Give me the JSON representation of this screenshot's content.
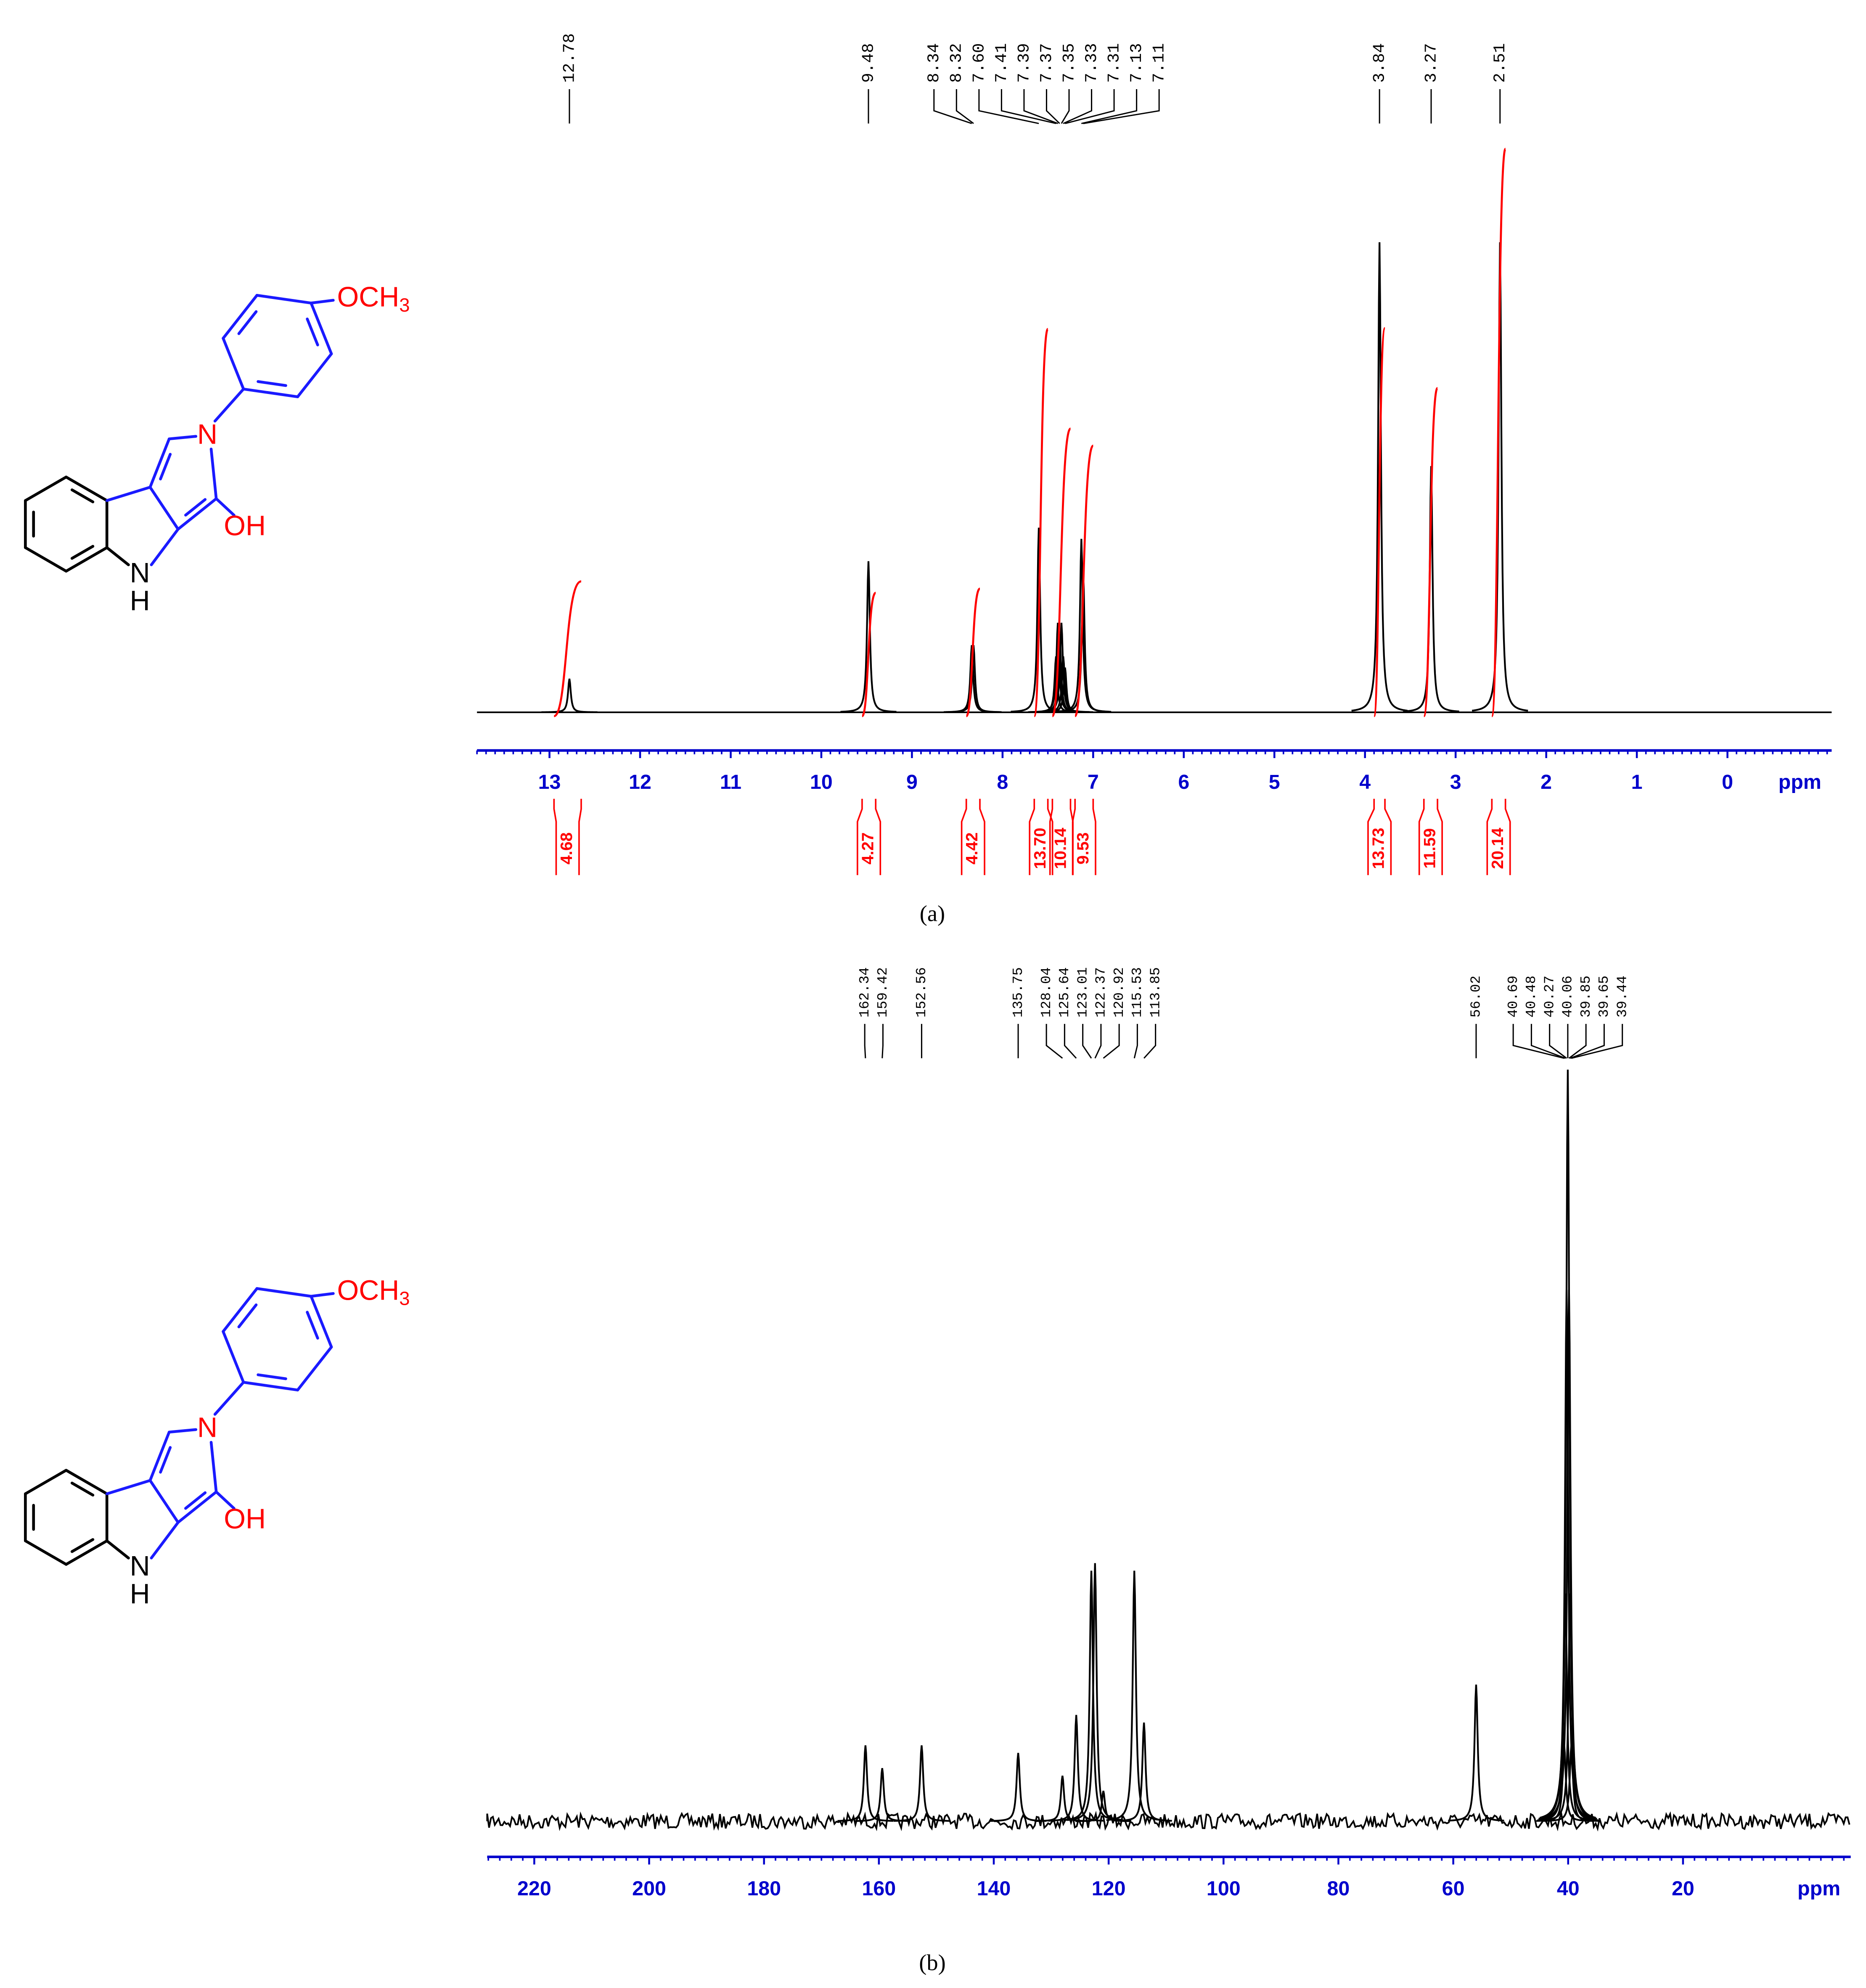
{
  "structure": {
    "substituent": "OCH",
    "subscript": "3",
    "ring_n": "N",
    "hydroxyl": "OH",
    "indole_n": "N",
    "indole_h": "H"
  },
  "chart_data": [
    {
      "type": "nmr",
      "caption": "(a)",
      "xlim": [
        13.8,
        -1.15
      ],
      "xticks": [
        13,
        12,
        11,
        10,
        9,
        8,
        7,
        6,
        5,
        4,
        3,
        2,
        1,
        0
      ],
      "x_label": "ppm",
      "color": "#000000",
      "axis_color": "#0000cc",
      "integral_color": "#ff0000",
      "peak_ticks": [
        12.78,
        9.48,
        8.34,
        8.32,
        {
          "value": 7.6,
          "label": "7.60"
        },
        7.41,
        7.39,
        7.37,
        7.35,
        7.33,
        7.31,
        7.13,
        7.11,
        3.84,
        3.27,
        2.51
      ],
      "peak_heights": [
        0.06,
        0.27,
        0.12,
        0.12,
        0.33,
        0.1,
        0.16,
        0.14,
        0.16,
        0.1,
        0.08,
        0.31,
        0.25,
        0.84,
        0.44,
        0.84
      ],
      "integrals": {
        "values": [
          4.68,
          4.27,
          4.42,
          13.7,
          10.14,
          9.53,
          13.73,
          11.59,
          20.14
        ],
        "value_labels": [
          "4.68",
          "4.27",
          "4.42",
          "13.70",
          "10.14",
          "9.53",
          "13.73",
          "11.59",
          "20.14"
        ],
        "ranges": [
          [
            12.95,
            12.65
          ],
          [
            9.55,
            9.4
          ],
          [
            8.4,
            8.25
          ],
          [
            7.65,
            7.5
          ],
          [
            7.45,
            7.25
          ],
          [
            7.2,
            7.0
          ],
          [
            3.9,
            3.78
          ],
          [
            3.35,
            3.2
          ],
          [
            2.6,
            2.45
          ]
        ]
      }
    },
    {
      "type": "nmr",
      "caption": "(b)",
      "xlim": [
        228.2,
        -9.2
      ],
      "xticks": [
        220,
        200,
        180,
        160,
        140,
        120,
        100,
        80,
        60,
        40,
        20
      ],
      "x_label": "ppm",
      "color": "#000000",
      "axis_color": "#0000cc",
      "peak_ticks": [
        162.34,
        159.42,
        152.56,
        135.75,
        128.04,
        125.64,
        123.01,
        122.37,
        120.92,
        115.53,
        113.85,
        56.02,
        40.69,
        40.48,
        40.27,
        {
          "value": 40.06,
          "label": "40.06"
        },
        39.85,
        39.65,
        39.44
      ],
      "peak_heights": [
        0.1,
        0.07,
        0.1,
        0.09,
        0.06,
        0.14,
        0.33,
        0.34,
        0.04,
        0.33,
        0.13,
        0.18,
        0.1,
        0.3,
        0.7,
        0.99,
        0.7,
        0.3,
        0.1
      ]
    }
  ]
}
